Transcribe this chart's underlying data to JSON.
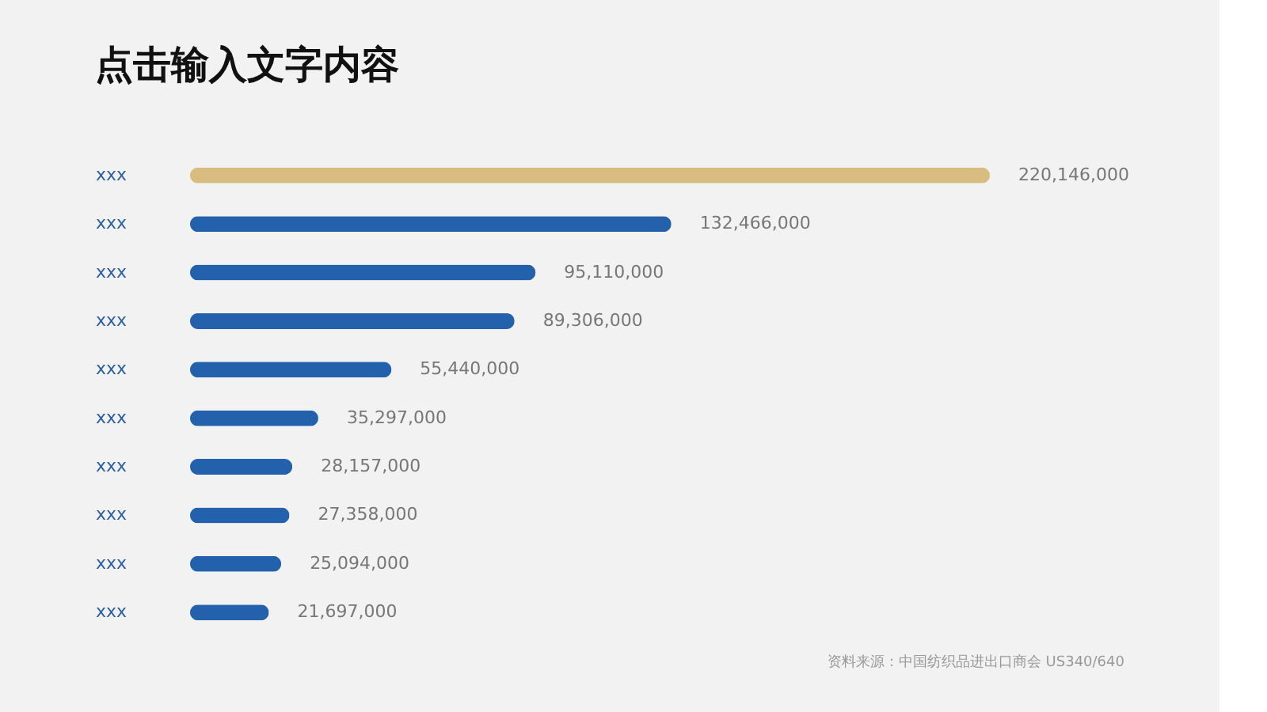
{
  "chart_data": {
    "type": "bar",
    "orientation": "horizontal",
    "title": "点击输入文字内容",
    "categories": [
      "xxx",
      "xxx",
      "xxx",
      "xxx",
      "xxx",
      "xxx",
      "xxx",
      "xxx",
      "xxx",
      "xxx"
    ],
    "values": [
      220146000,
      132466000,
      95110000,
      89306000,
      55440000,
      35297000,
      28157000,
      27358000,
      25094000,
      21697000
    ],
    "colors": [
      "#d9bd80",
      "#2361ad",
      "#2361ad",
      "#2361ad",
      "#2361ad",
      "#2361ad",
      "#2361ad",
      "#2361ad",
      "#2361ad",
      "#2361ad"
    ],
    "value_labels": [
      "220,146,000",
      "132,466,000",
      "95,110,000",
      "89,306,000",
      "55,440,000",
      "35,297,000",
      "28,157,000",
      "27,358,000",
      "25,094,000",
      "21,697,000"
    ],
    "tick_labels": "y",
    "grid": false,
    "annotations": [
      "资料来源：中国纺织品进出口商会 US340/640"
    ]
  }
}
